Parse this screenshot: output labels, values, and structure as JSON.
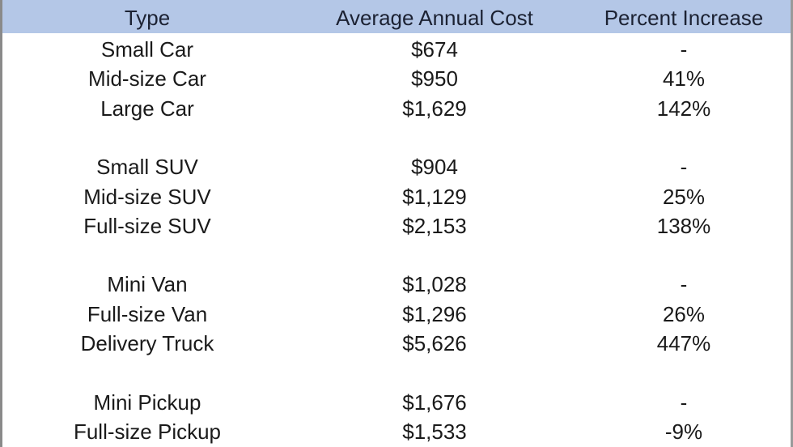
{
  "colors": {
    "header_bg": "#b4c7e7"
  },
  "table": {
    "headers": [
      "Type",
      "Average Annual Cost",
      "Percent Increase"
    ],
    "groups": [
      [
        {
          "type": "Small Car",
          "cost": "$674",
          "increase": "-"
        },
        {
          "type": "Mid-size Car",
          "cost": "$950",
          "increase": "41%"
        },
        {
          "type": "Large Car",
          "cost": "$1,629",
          "increase": "142%"
        }
      ],
      [
        {
          "type": "Small SUV",
          "cost": "$904",
          "increase": "-"
        },
        {
          "type": "Mid-size SUV",
          "cost": "$1,129",
          "increase": "25%"
        },
        {
          "type": "Full-size SUV",
          "cost": "$2,153",
          "increase": "138%"
        }
      ],
      [
        {
          "type": "Mini Van",
          "cost": "$1,028",
          "increase": "-"
        },
        {
          "type": "Full-size Van",
          "cost": "$1,296",
          "increase": "26%"
        },
        {
          "type": "Delivery Truck",
          "cost": "$5,626",
          "increase": "447%"
        }
      ],
      [
        {
          "type": "Mini Pickup",
          "cost": "$1,676",
          "increase": "-"
        },
        {
          "type": "Full-size Pickup",
          "cost": "$1,533",
          "increase": "-9%"
        }
      ]
    ]
  }
}
